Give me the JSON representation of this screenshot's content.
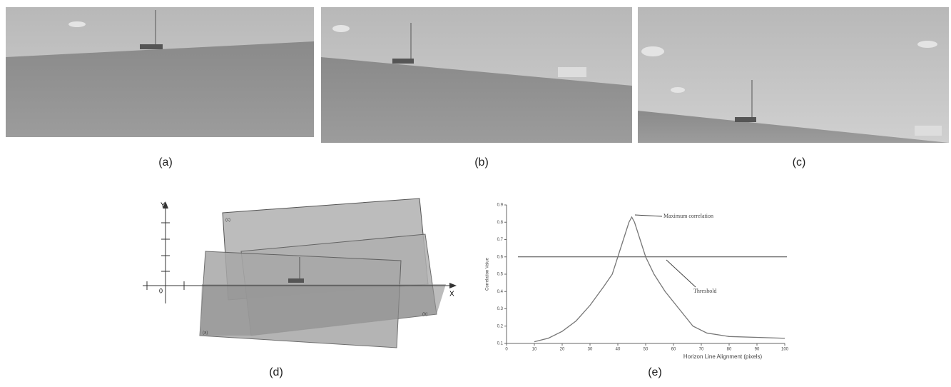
{
  "panels": {
    "a": "(a)",
    "b": "(b)",
    "c": "(c)",
    "d": "(d)",
    "e": "(e)"
  },
  "diagram_d": {
    "y_axis": "Y",
    "x_axis": "X",
    "origin": "0",
    "frame_c": "(c)",
    "frame_b": "(b)",
    "frame_a": "(a)"
  },
  "chart_data": {
    "type": "line",
    "x_label": "Horizon Line Alignment (pixels)",
    "y_label": "Correlation Value",
    "annotations": [
      "Maximum correlation",
      "Threshold"
    ],
    "x": [
      10,
      15,
      20,
      25,
      30,
      35,
      38,
      40,
      42,
      44,
      45,
      46,
      48,
      50,
      53,
      57,
      62,
      67,
      72,
      80,
      90,
      100
    ],
    "series": [
      {
        "color": "#777",
        "values": [
          0.11,
          0.13,
          0.17,
          0.23,
          0.32,
          0.43,
          0.5,
          0.6,
          0.7,
          0.8,
          0.83,
          0.8,
          0.7,
          0.6,
          0.5,
          0.4,
          0.3,
          0.2,
          0.16,
          0.14,
          0.135,
          0.13
        ]
      }
    ],
    "threshold": 0.6,
    "xlim": [
      0,
      100
    ],
    "xticks": [
      0,
      10,
      20,
      30,
      40,
      50,
      60,
      70,
      80,
      90,
      100
    ],
    "ylim": [
      0.1,
      0.9
    ],
    "yticks": [
      0.1,
      0.2,
      0.3,
      0.4,
      0.5,
      0.6,
      0.7,
      0.8,
      0.9
    ]
  }
}
